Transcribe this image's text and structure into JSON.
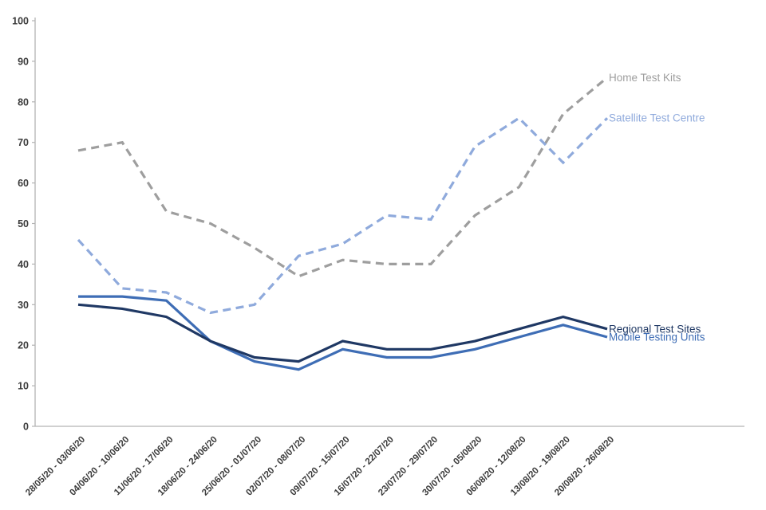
{
  "chart_data": {
    "type": "line",
    "title": "",
    "xlabel": "",
    "ylabel": "",
    "ylim": [
      0,
      100
    ],
    "ytick_step": 10,
    "grid": false,
    "legend_position": "end-of-line-labels",
    "y_tick_labels": [
      "0",
      "10",
      "20",
      "30",
      "40",
      "50",
      "60",
      "70",
      "80",
      "90",
      "100"
    ],
    "categories": [
      "28/05/20 - 03/06/20",
      "04/06/20 - 10/06/20",
      "11/06/20 - 17/06/20",
      "18/06/20 - 24/06/20",
      "25/06/20 - 01/07/20",
      "02/07/20 - 08/07/20",
      "09/07/20 - 15/07/20",
      "16/07/20 - 22/07/20",
      "23/07/20 - 29/07/20",
      "30/07/20 - 05/08/20",
      "06/08/20 - 12/08/20",
      "13/08/20 - 19/08/20",
      "20/08/20 - 26/08/20"
    ],
    "series": [
      {
        "name": "Home Test Kits",
        "color": "#9e9e9e",
        "line_style": "dashed",
        "values": [
          68,
          70,
          53,
          50,
          44,
          37,
          41,
          40,
          40,
          52,
          59,
          77,
          86
        ]
      },
      {
        "name": "Satellite Test Centre",
        "color": "#8faadc",
        "line_style": "dashed",
        "values": [
          46,
          34,
          33,
          28,
          30,
          42,
          45,
          52,
          51,
          69,
          76,
          65,
          76
        ]
      },
      {
        "name": "Mobile Testing Units",
        "color": "#3e6db5",
        "line_style": "solid",
        "values": [
          32,
          32,
          31,
          21,
          16,
          14,
          19,
          17,
          17,
          19,
          22,
          25,
          22
        ]
      },
      {
        "name": "Regional Test Sites",
        "color": "#1f3864",
        "line_style": "solid",
        "values": [
          30,
          29,
          27,
          21,
          17,
          16,
          21,
          19,
          19,
          21,
          24,
          27,
          24
        ]
      }
    ],
    "axis_color": "#b3b3b3"
  }
}
